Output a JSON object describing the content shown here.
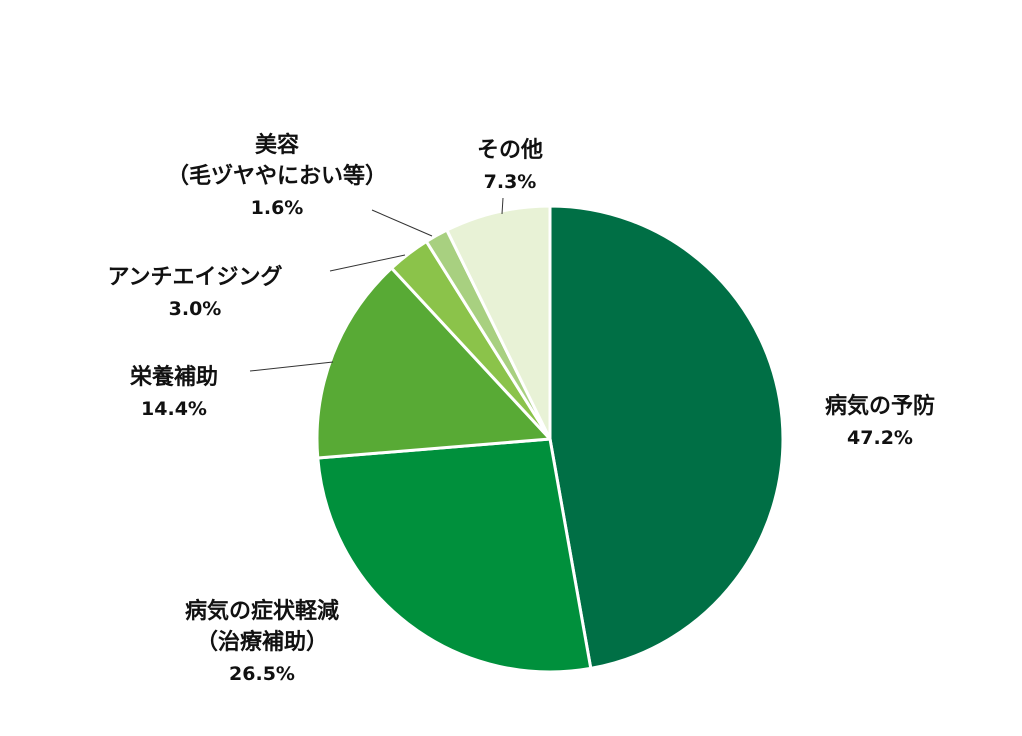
{
  "chart_data": {
    "type": "pie",
    "title": "",
    "unit": "%",
    "slices": [
      {
        "name": [
          "病気の予防"
        ],
        "value": 47.2,
        "label": "47.2%",
        "color": "#006f45"
      },
      {
        "name": [
          "病気の症状軽減",
          "（治療補助）"
        ],
        "value": 26.5,
        "label": "26.5%",
        "color": "#00903c"
      },
      {
        "name": [
          "栄養補助"
        ],
        "value": 14.4,
        "label": "14.4%",
        "color": "#58aa35"
      },
      {
        "name": [
          "アンチエイジング"
        ],
        "value": 3.0,
        "label": "3.0%",
        "color": "#8bc34a"
      },
      {
        "name": [
          "美容",
          "（毛ヅヤやにおい等）"
        ],
        "value": 1.6,
        "label": "1.6%",
        "color": "#a8d080"
      },
      {
        "name": [
          "その他"
        ],
        "value": 7.3,
        "label": "7.3%",
        "color": "#e8f2d6"
      }
    ]
  }
}
